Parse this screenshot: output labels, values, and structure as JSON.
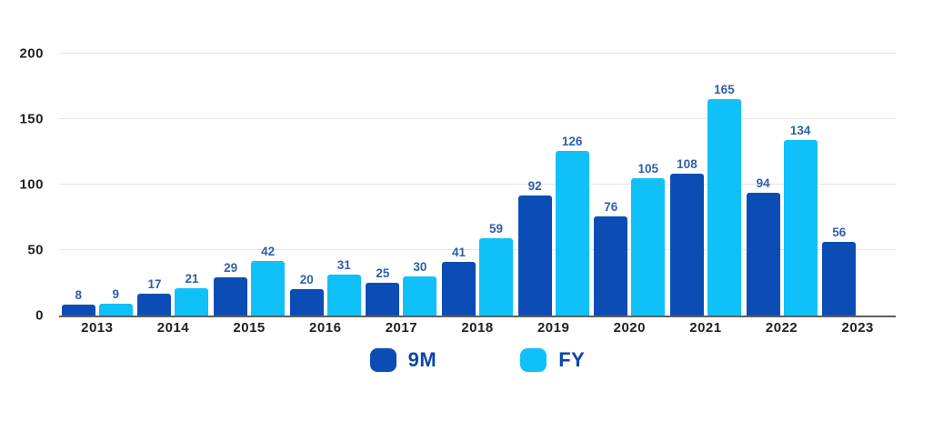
{
  "chart_data": {
    "type": "bar",
    "title": "",
    "xlabel": "",
    "ylabel": "",
    "categories": [
      "2013",
      "2014",
      "2015",
      "2016",
      "2017",
      "2018",
      "2019",
      "2020",
      "2021",
      "2022",
      "2023"
    ],
    "series": [
      {
        "name": "9M",
        "color": "#0b4db4",
        "values": [
          8,
          17,
          29,
          20,
          25,
          41,
          92,
          76,
          108,
          94,
          56
        ]
      },
      {
        "name": "FY",
        "color": "#10c0f9",
        "values": [
          9,
          21,
          42,
          31,
          30,
          59,
          126,
          105,
          165,
          134,
          null
        ]
      }
    ],
    "ylim": [
      0,
      200
    ],
    "yticks": [
      0,
      50,
      100,
      150,
      200
    ],
    "grid": true,
    "data_labels": true,
    "legend_position": "bottom"
  },
  "legend": {
    "items": [
      {
        "label": "9M",
        "color": "#0b4db4"
      },
      {
        "label": "FY",
        "color": "#10c0f9"
      }
    ]
  },
  "colors": {
    "background": "#ffffff",
    "grid": "#e4e4e4",
    "axis_line": "#5f5f5f",
    "axis_text": "#212121",
    "data_label": "#2f5fa9",
    "legend_text": "#0a46ab",
    "series_9m": "#0b4db4",
    "series_fy": "#10c0f9"
  }
}
